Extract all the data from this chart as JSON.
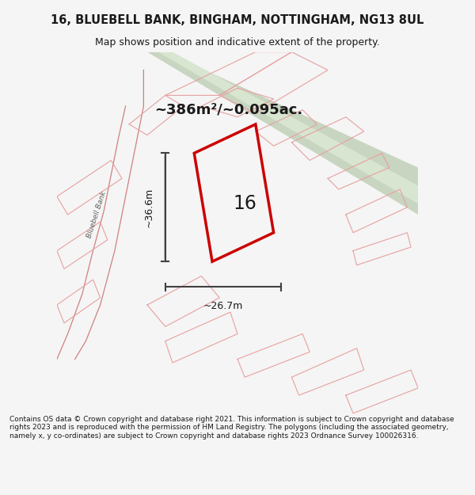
{
  "title_line1": "16, BLUEBELL BANK, BINGHAM, NOTTINGHAM, NG13 8UL",
  "title_line2": "Map shows position and indicative extent of the property.",
  "area_text": "~386m²/~0.095ac.",
  "label_number": "16",
  "dim_vertical": "~36.6m",
  "dim_horizontal": "~26.7m",
  "footer_text": "Contains OS data © Crown copyright and database right 2021. This information is subject to Crown copyright and database rights 2023 and is reproduced with the permission of HM Land Registry. The polygons (including the associated geometry, namely x, y co-ordinates) are subject to Crown copyright and database rights 2023 Ordnance Survey 100026316.",
  "bg_color": "#f5f5f5",
  "map_bg": "#f0eeee",
  "road_stripe_color": "#c8d8c0",
  "road_center_color": "#dce8d4",
  "plot_line_color": "#e87070",
  "dim_line_color": "#404040",
  "text_color": "#1a1a1a",
  "footer_bg": "#ffffff",
  "road_stripe2_color": "#d4e0cc"
}
